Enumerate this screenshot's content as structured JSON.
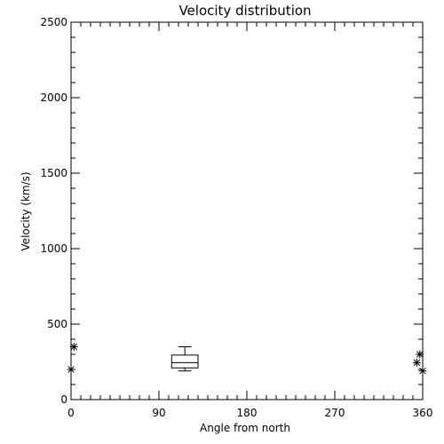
{
  "chart_data": {
    "type": "box",
    "title": "Velocity distribution",
    "xlabel": "Angle from north",
    "ylabel": "Velocity (km/s)",
    "xlim": [
      0,
      360
    ],
    "ylim": [
      0,
      2500
    ],
    "x_ticks": [
      0,
      90,
      180,
      270,
      360
    ],
    "x_tick_labels": [
      "0",
      "90",
      "180",
      "270",
      "360"
    ],
    "y_ticks": [
      0,
      500,
      1000,
      1500,
      2000,
      2500
    ],
    "y_tick_labels": [
      "0",
      "500",
      "1000",
      "1500",
      "2000",
      "2500"
    ],
    "box": {
      "x_range": [
        103,
        130
      ],
      "whisker_low": 190,
      "q1": 210,
      "median": 245,
      "q3": 295,
      "whisker_high": 350
    },
    "points": [
      {
        "x": 3,
        "y": 350
      },
      {
        "x": 0,
        "y": 200
      },
      {
        "x": 357,
        "y": 300
      },
      {
        "x": 354,
        "y": 245
      },
      {
        "x": 360,
        "y": 190
      }
    ]
  }
}
